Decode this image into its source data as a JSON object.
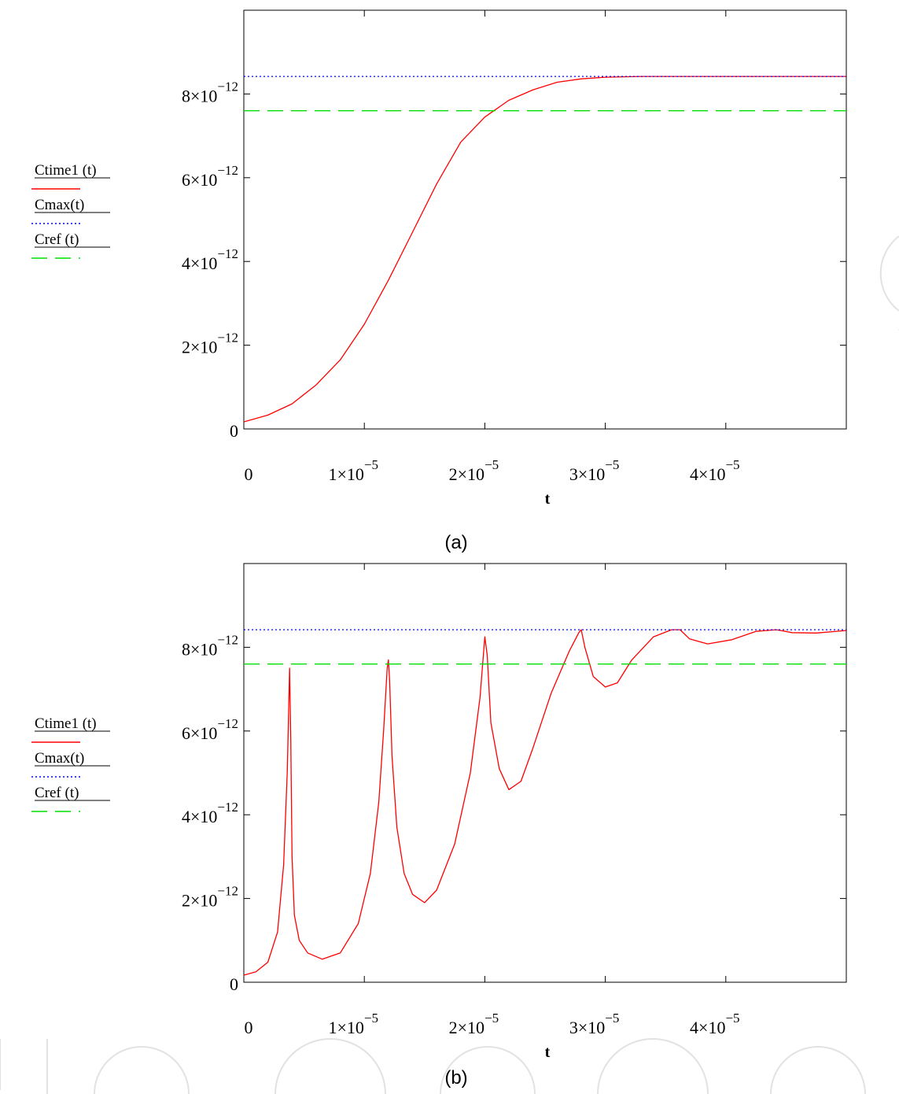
{
  "chart_data": [
    {
      "type": "line",
      "caption": "(a)",
      "xlabel": "t",
      "ylabel": "",
      "xlim": [
        0,
        5e-05
      ],
      "ylim": [
        0,
        1e-11
      ],
      "x_ticks": [
        0,
        1e-05,
        2e-05,
        3e-05,
        4e-05
      ],
      "x_tick_labels": [
        {
          "mantissa": "0",
          "exponent": ""
        },
        {
          "mantissa": "1×10",
          "exponent": "−5"
        },
        {
          "mantissa": "2×10",
          "exponent": "−5"
        },
        {
          "mantissa": "3×10",
          "exponent": "−5"
        },
        {
          "mantissa": "4×10",
          "exponent": "−5"
        }
      ],
      "y_ticks": [
        0,
        2e-12,
        4e-12,
        6e-12,
        8e-12
      ],
      "y_tick_labels": [
        {
          "mantissa": "0",
          "exponent": ""
        },
        {
          "mantissa": "2×10",
          "exponent": "−12"
        },
        {
          "mantissa": "4×10",
          "exponent": "−12"
        },
        {
          "mantissa": "6×10",
          "exponent": "−12"
        },
        {
          "mantissa": "8×10",
          "exponent": "−12"
        }
      ],
      "grid": false,
      "legend_position": "left",
      "series": [
        {
          "name": "Ctime1 (t)",
          "color": "#ff0000",
          "style": "solid",
          "x": [
            0,
            2e-06,
            4e-06,
            6e-06,
            8e-06,
            1e-05,
            1.2e-05,
            1.4e-05,
            1.6e-05,
            1.8e-05,
            2e-05,
            2.2e-05,
            2.4e-05,
            2.6e-05,
            2.8e-05,
            3e-05,
            3.3e-05,
            3.6e-05,
            4e-05,
            4.5e-05,
            5e-05
          ],
          "y": [
            1.7e-13,
            3.3e-13,
            6e-13,
            1.05e-12,
            1.65e-12,
            2.5e-12,
            3.55e-12,
            4.7e-12,
            5.85e-12,
            6.85e-12,
            7.45e-12,
            7.85e-12,
            8.1e-12,
            8.28e-12,
            8.36e-12,
            8.4e-12,
            8.42e-12,
            8.42e-12,
            8.42e-12,
            8.42e-12,
            8.42e-12
          ]
        },
        {
          "name": "Cmax(t)",
          "color": "#0000ff",
          "style": "dotted",
          "x": [
            0,
            5e-05
          ],
          "y": [
            8.42e-12,
            8.42e-12
          ]
        },
        {
          "name": "Cref (t)",
          "color": "#00dd00",
          "style": "dashed",
          "x": [
            0,
            5e-05
          ],
          "y": [
            7.6e-12,
            7.6e-12
          ]
        }
      ]
    },
    {
      "type": "line",
      "caption": "(b)",
      "xlabel": "t",
      "ylabel": "",
      "xlim": [
        0,
        5e-05
      ],
      "ylim": [
        0,
        1e-11
      ],
      "x_ticks": [
        0,
        1e-05,
        2e-05,
        3e-05,
        4e-05
      ],
      "x_tick_labels": [
        {
          "mantissa": "0",
          "exponent": ""
        },
        {
          "mantissa": "1×10",
          "exponent": "−5"
        },
        {
          "mantissa": "2×10",
          "exponent": "−5"
        },
        {
          "mantissa": "3×10",
          "exponent": "−5"
        },
        {
          "mantissa": "4×10",
          "exponent": "−5"
        }
      ],
      "y_ticks": [
        0,
        2e-12,
        4e-12,
        6e-12,
        8e-12
      ],
      "y_tick_labels": [
        {
          "mantissa": "0",
          "exponent": ""
        },
        {
          "mantissa": "2×10",
          "exponent": "−12"
        },
        {
          "mantissa": "4×10",
          "exponent": "−12"
        },
        {
          "mantissa": "6×10",
          "exponent": "−12"
        },
        {
          "mantissa": "8×10",
          "exponent": "−12"
        }
      ],
      "grid": false,
      "legend_position": "left",
      "series": [
        {
          "name": "Ctime1 (t)",
          "color": "#ff0000",
          "style": "solid",
          "x": [
            0,
            1e-06,
            2e-06,
            2.8e-06,
            3.3e-06,
            3.6e-06,
            3.8e-06,
            3.9e-06,
            4e-06,
            4.2e-06,
            4.6e-06,
            5.3e-06,
            6.5e-06,
            8e-06,
            9.5e-06,
            1.05e-05,
            1.12e-05,
            1.16e-05,
            1.19e-05,
            1.2e-05,
            1.21e-05,
            1.23e-05,
            1.27e-05,
            1.33e-05,
            1.4e-05,
            1.5e-05,
            1.6e-05,
            1.75e-05,
            1.88e-05,
            1.96e-05,
            2e-05,
            2.02e-05,
            2.05e-05,
            2.12e-05,
            2.2e-05,
            2.3e-05,
            2.4e-05,
            2.55e-05,
            2.7e-05,
            2.78e-05,
            2.8e-05,
            2.83e-05,
            2.9e-05,
            3e-05,
            3.1e-05,
            3.22e-05,
            3.4e-05,
            3.55e-05,
            3.62e-05,
            3.7e-05,
            3.85e-05,
            4.05e-05,
            4.25e-05,
            4.42e-05,
            4.55e-05,
            4.75e-05,
            5e-05
          ],
          "y": [
            1.7e-13,
            2.5e-13,
            4.8e-13,
            1.2e-12,
            2.8e-12,
            5e-12,
            7.5e-12,
            5.8e-12,
            3e-12,
            1.6e-12,
            1e-12,
            7e-13,
            5.5e-13,
            7e-13,
            1.4e-12,
            2.6e-12,
            4.3e-12,
            6e-12,
            7.5e-12,
            7.7e-12,
            7.2e-12,
            5.4e-12,
            3.7e-12,
            2.6e-12,
            2.1e-12,
            1.9e-12,
            2.2e-12,
            3.3e-12,
            5e-12,
            6.8e-12,
            8.25e-12,
            7.8e-12,
            6.2e-12,
            5.1e-12,
            4.6e-12,
            4.8e-12,
            5.6e-12,
            6.9e-12,
            7.9e-12,
            8.35e-12,
            8.42e-12,
            8e-12,
            7.3e-12,
            7.05e-12,
            7.15e-12,
            7.7e-12,
            8.25e-12,
            8.42e-12,
            8.42e-12,
            8.2e-12,
            8.08e-12,
            8.18e-12,
            8.38e-12,
            8.42e-12,
            8.35e-12,
            8.34e-12,
            8.4e-12
          ]
        },
        {
          "name": "Cmax(t)",
          "color": "#0000ff",
          "style": "dotted",
          "x": [
            0,
            5e-05
          ],
          "y": [
            8.42e-12,
            8.42e-12
          ]
        },
        {
          "name": "Cref (t)",
          "color": "#00dd00",
          "style": "dashed",
          "x": [
            0,
            5e-05
          ],
          "y": [
            7.6e-12,
            7.6e-12
          ]
        }
      ]
    }
  ]
}
